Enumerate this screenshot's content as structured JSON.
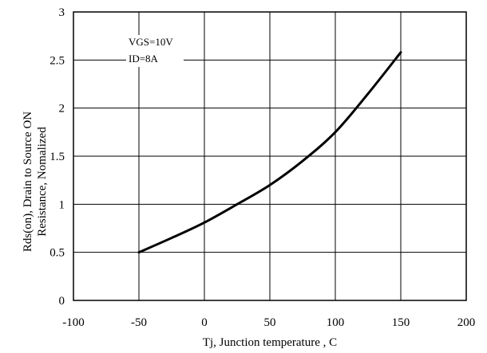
{
  "chart_data": {
    "type": "line",
    "title": "",
    "xlabel": "Tj, Junction temperature , C",
    "ylabel_lines": [
      "Rds(on), Drain to Source ON",
      "Resistance, Nomalized"
    ],
    "xlim": [
      -100,
      200
    ],
    "ylim": [
      0,
      3
    ],
    "x_ticks": [
      -100,
      -50,
      0,
      50,
      100,
      150,
      200
    ],
    "y_ticks": [
      0,
      0.5,
      1,
      1.5,
      2,
      2.5,
      3
    ],
    "x_tick_labels": [
      "-100",
      "-50",
      "0",
      "50",
      "100",
      "150",
      "200"
    ],
    "y_tick_labels": [
      "0",
      "0.5",
      "1",
      "1.5",
      "2",
      "2.5",
      "3"
    ],
    "grid": true,
    "annotations": [
      "VGS=10V",
      "ID=8A"
    ],
    "series": [
      {
        "x": [
          -50,
          -25,
          0,
          25,
          50,
          75,
          100,
          125,
          150
        ],
        "y": [
          0.5,
          0.65,
          0.81,
          1.0,
          1.2,
          1.45,
          1.75,
          2.15,
          2.58
        ]
      }
    ]
  }
}
